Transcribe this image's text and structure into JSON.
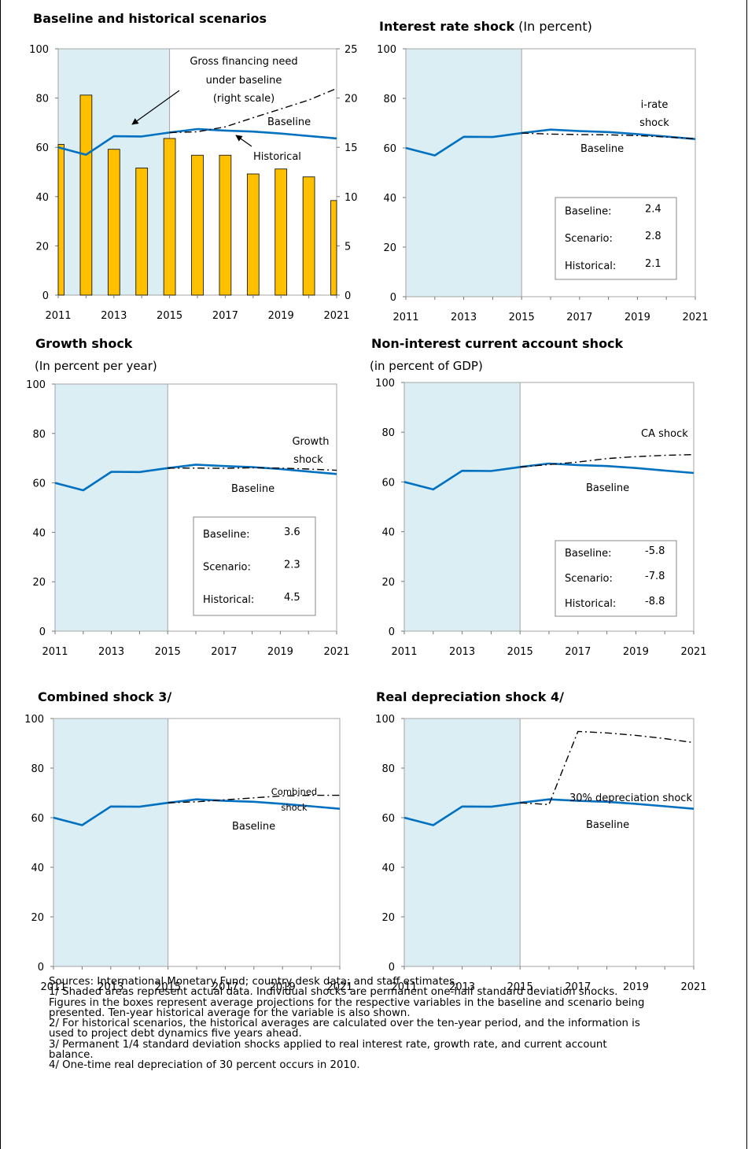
{
  "chart_data": [
    {
      "id": "c1",
      "type": "bar+line",
      "title": "Baseline and historical scenarios",
      "subtitle": "",
      "shaded_actual": [
        2011,
        2015
      ],
      "x": [
        2011,
        2012,
        2013,
        2014,
        2015,
        2016,
        2017,
        2018,
        2019,
        2020,
        2021
      ],
      "x_ticks": [
        "2011",
        "2013",
        "2015",
        "2017",
        "2019",
        "2021"
      ],
      "y_left": [
        0,
        100
      ],
      "y_left_ticks": [
        "0",
        "20",
        "40",
        "60",
        "80",
        "100"
      ],
      "y_right": [
        0,
        25
      ],
      "y_right_ticks": [
        "0",
        "5",
        "10",
        "15",
        "20",
        "25"
      ],
      "bars": {
        "name": "Gross financing need under baseline (right scale)",
        "axis": "right",
        "color": "#FFC000",
        "values": [
          15.3,
          20.3,
          14.8,
          12.9,
          15.9,
          14.2,
          14.2,
          12.3,
          12.8,
          12.0,
          9.6
        ]
      },
      "series": [
        {
          "name": "Baseline",
          "style": "solid",
          "color": "#0070C0",
          "values": [
            60.0,
            57.0,
            64.5,
            64.4,
            66.0,
            67.4,
            66.8,
            66.4,
            65.6,
            64.6,
            63.6
          ]
        },
        {
          "name": "Historical",
          "style": "dashdot",
          "color": "#000000",
          "values": [
            null,
            null,
            null,
            null,
            66.0,
            66.3,
            68.3,
            72.0,
            75.6,
            79.2,
            83.9
          ]
        }
      ],
      "annotations": {
        "gfn_1": "Gross financing need",
        "gfn_2": "under baseline",
        "gfn_3": "(right scale)",
        "baseline": "Baseline",
        "historical": "Historical"
      }
    },
    {
      "id": "c2",
      "type": "line",
      "title": "Interest rate shock",
      "subtitle": "(In percent)",
      "shaded_actual": [
        2011,
        2015
      ],
      "x": [
        2011,
        2012,
        2013,
        2014,
        2015,
        2016,
        2017,
        2018,
        2019,
        2020,
        2021
      ],
      "x_ticks": [
        "2011",
        "2013",
        "2015",
        "2017",
        "2019",
        "2021"
      ],
      "y_left": [
        0,
        100
      ],
      "y_left_ticks": [
        "0",
        "20",
        "40",
        "60",
        "80",
        "100"
      ],
      "series": [
        {
          "name": "Baseline",
          "style": "solid",
          "color": "#0070C0",
          "values": [
            60.0,
            57.0,
            64.5,
            64.4,
            66.0,
            67.4,
            66.8,
            66.4,
            65.6,
            64.6,
            63.6
          ]
        },
        {
          "name": "i-rate shock",
          "style": "dashdot",
          "color": "#000000",
          "values": [
            null,
            null,
            null,
            null,
            66.0,
            65.6,
            65.4,
            65.3,
            65.0,
            64.4,
            63.7
          ]
        }
      ],
      "annotations": {
        "shock_1": "i-rate",
        "shock_2": "shock",
        "baseline": "Baseline"
      },
      "box": {
        "rows": [
          {
            "label": "Baseline:",
            "value": "2.4"
          },
          {
            "label": "Scenario:",
            "value": "2.8"
          },
          {
            "label": "Historical:",
            "value": "2.1"
          }
        ]
      }
    },
    {
      "id": "c3",
      "type": "line",
      "title": "Growth shock",
      "subtitle": "(In percent per year)",
      "shaded_actual": [
        2011,
        2015
      ],
      "x": [
        2011,
        2012,
        2013,
        2014,
        2015,
        2016,
        2017,
        2018,
        2019,
        2020,
        2021
      ],
      "x_ticks": [
        "2011",
        "2013",
        "2015",
        "2017",
        "2019",
        "2021"
      ],
      "y_left": [
        0,
        100
      ],
      "y_left_ticks": [
        "0",
        "20",
        "40",
        "60",
        "80",
        "100"
      ],
      "series": [
        {
          "name": "Baseline",
          "style": "solid",
          "color": "#0070C0",
          "values": [
            60.0,
            57.0,
            64.5,
            64.4,
            66.0,
            67.4,
            66.8,
            66.4,
            65.6,
            64.6,
            63.6
          ]
        },
        {
          "name": "Growth shock",
          "style": "dashdot",
          "color": "#000000",
          "values": [
            null,
            null,
            null,
            null,
            66.0,
            66.0,
            65.9,
            66.1,
            66.0,
            65.6,
            65.1
          ]
        }
      ],
      "annotations": {
        "shock_1": "Growth",
        "shock_2": "shock",
        "baseline": "Baseline"
      },
      "box": {
        "rows": [
          {
            "label": "Baseline:",
            "value": "3.6"
          },
          {
            "label": "Scenario:",
            "value": "2.3"
          },
          {
            "label": "Historical:",
            "value": "4.5"
          }
        ]
      }
    },
    {
      "id": "c4",
      "type": "line",
      "title": "Non-interest current account shock",
      "subtitle": "(in percent of GDP)",
      "shaded_actual": [
        2011,
        2015
      ],
      "x": [
        2011,
        2012,
        2013,
        2014,
        2015,
        2016,
        2017,
        2018,
        2019,
        2020,
        2021
      ],
      "x_ticks": [
        "2011",
        "2013",
        "2015",
        "2017",
        "2019",
        "2021"
      ],
      "y_left": [
        0,
        100
      ],
      "y_left_ticks": [
        "0",
        "20",
        "40",
        "60",
        "80",
        "100"
      ],
      "series": [
        {
          "name": "Baseline",
          "style": "solid",
          "color": "#0070C0",
          "values": [
            60.0,
            57.0,
            64.5,
            64.4,
            66.0,
            67.4,
            66.8,
            66.4,
            65.6,
            64.6,
            63.6
          ]
        },
        {
          "name": "CA shock",
          "style": "dashdot",
          "color": "#000000",
          "values": [
            null,
            null,
            null,
            null,
            66.0,
            67.0,
            68.0,
            69.4,
            70.2,
            70.7,
            71.0
          ]
        }
      ],
      "annotations": {
        "shock_1": "CA shock",
        "baseline": "Baseline"
      },
      "box": {
        "rows": [
          {
            "label": "Baseline:",
            "value": "-5.8"
          },
          {
            "label": "Scenario:",
            "value": "-7.8"
          },
          {
            "label": "Historical:",
            "value": "-8.8"
          }
        ]
      }
    },
    {
      "id": "c5",
      "type": "line",
      "title": "Combined shock  3/",
      "subtitle": "",
      "shaded_actual": [
        2011,
        2015
      ],
      "x": [
        2011,
        2012,
        2013,
        2014,
        2015,
        2016,
        2017,
        2018,
        2019,
        2020,
        2021
      ],
      "x_ticks": [
        "2011",
        "2013",
        "2015",
        "2017",
        "2019",
        "2021"
      ],
      "y_left": [
        0,
        100
      ],
      "y_left_ticks": [
        "0",
        "20",
        "40",
        "60",
        "80",
        "100"
      ],
      "series": [
        {
          "name": "Baseline",
          "style": "solid",
          "color": "#0070C0",
          "values": [
            60.0,
            57.0,
            64.5,
            64.4,
            66.0,
            67.4,
            66.8,
            66.4,
            65.6,
            64.6,
            63.6
          ]
        },
        {
          "name": "Combined shock",
          "style": "dashdot",
          "color": "#000000",
          "values": [
            null,
            null,
            null,
            null,
            66.0,
            66.4,
            67.2,
            68.0,
            68.8,
            69.0,
            69.0
          ]
        }
      ],
      "annotations": {
        "shock_1": "Combined",
        "shock_2": "shock",
        "baseline": "Baseline"
      }
    },
    {
      "id": "c6",
      "type": "line",
      "title": "Real depreciation shock  4/",
      "subtitle": "",
      "shaded_actual": [
        2011,
        2015
      ],
      "x": [
        2011,
        2012,
        2013,
        2014,
        2015,
        2016,
        2017,
        2018,
        2019,
        2020,
        2021
      ],
      "x_ticks": [
        "2011",
        "2013",
        "2015",
        "2017",
        "2019",
        "2021"
      ],
      "y_left": [
        0,
        100
      ],
      "y_left_ticks": [
        "0",
        "20",
        "40",
        "60",
        "80",
        "100"
      ],
      "series": [
        {
          "name": "Baseline",
          "style": "solid",
          "color": "#0070C0",
          "values": [
            60.0,
            57.0,
            64.5,
            64.4,
            66.0,
            67.4,
            66.8,
            66.4,
            65.6,
            64.6,
            63.6
          ]
        },
        {
          "name": "30% depreciation shock",
          "style": "dashdot",
          "color": "#000000",
          "values": [
            null,
            null,
            null,
            null,
            66.0,
            65.3,
            94.8,
            94.2,
            93.2,
            91.9,
            90.3
          ]
        }
      ],
      "annotations": {
        "shock_1": "30% depreciation shock",
        "baseline": "Baseline"
      }
    }
  ],
  "colors": {
    "shade": "#DAEEF3",
    "baseline": "#0070C0",
    "bar": "#FFC000",
    "grid_border": "#A6A6A6"
  },
  "footnotes": [
    "Sources: International Monetary Fund; country desk data; and staff estimates.",
    "1/ Shaded areas represent actual data. Individual shocks are permanent one-half standard deviation shocks.",
    "Figures in the boxes represent average projections for the respective variables in the baseline and scenario being",
    "presented. Ten-year historical average for the variable is also shown.",
    "2/ For historical scenarios, the historical averages are calculated over the ten-year period, and the information  is",
    "used to project debt dynamics five years ahead.",
    "3/ Permanent 1/4 standard deviation shocks applied to real interest rate, growth rate, and current account",
    "balance.",
    "4/ One-time real depreciation of 30 percent occurs in 2010."
  ]
}
